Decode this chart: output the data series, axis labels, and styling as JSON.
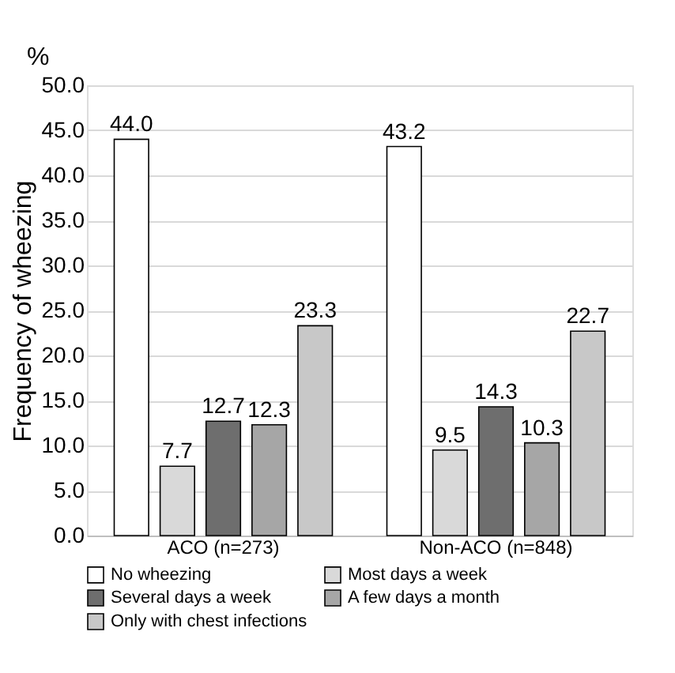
{
  "chart_data": {
    "type": "bar",
    "ylabel": "Frequency of wheezing",
    "annotations": [
      "%"
    ],
    "categories": [
      "ACO (n=273)",
      "Non-ACO (n=848)"
    ],
    "series": [
      {
        "name": "No wheezing",
        "color": "#ffffff",
        "values": [
          44.0,
          43.2
        ],
        "value_labels": [
          "44.0",
          "43.2"
        ]
      },
      {
        "name": "Most days a week",
        "color": "#d9d9d9",
        "values": [
          7.7,
          9.5
        ],
        "value_labels": [
          "7.7",
          "9.5"
        ]
      },
      {
        "name": "Several days a week",
        "color": "#6e6e6e",
        "values": [
          12.7,
          14.3
        ],
        "value_labels": [
          "12.7",
          "14.3"
        ]
      },
      {
        "name": "A few days a month",
        "color": "#a6a6a6",
        "values": [
          12.3,
          10.3
        ],
        "value_labels": [
          "12.3",
          "10.3"
        ]
      },
      {
        "name": "Only with chest infections",
        "color": "#c8c8c8",
        "values": [
          23.3,
          22.7
        ],
        "value_labels": [
          "23.3",
          "22.7"
        ]
      }
    ],
    "ylim": [
      0,
      50
    ],
    "yticks": [
      {
        "value": 0,
        "label": "0.0"
      },
      {
        "value": 5,
        "label": "5.0"
      },
      {
        "value": 10,
        "label": "10.0"
      },
      {
        "value": 15,
        "label": "15.0"
      },
      {
        "value": 20,
        "label": "20.0"
      },
      {
        "value": 25,
        "label": "25.0"
      },
      {
        "value": 30,
        "label": "30.0"
      },
      {
        "value": 35,
        "label": "35.0"
      },
      {
        "value": 40,
        "label": "40.0"
      },
      {
        "value": 45,
        "label": "45.0"
      },
      {
        "value": 50,
        "label": "50.0"
      }
    ],
    "grid": "y",
    "legend": "bottom"
  }
}
